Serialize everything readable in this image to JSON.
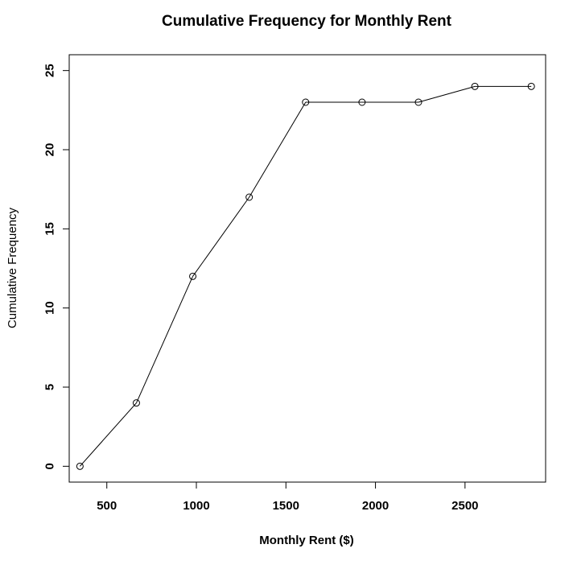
{
  "chart_data": {
    "type": "line",
    "title": "Cumulative Frequency for Monthly Rent",
    "xlabel": "Monthly Rent ($)",
    "ylabel": "Cumulative Frequency",
    "x_ticks": [
      500,
      1000,
      1500,
      2000,
      2500
    ],
    "y_ticks": [
      0,
      5,
      10,
      15,
      20,
      25
    ],
    "x_tick_labels": [
      "500",
      "1000",
      "1500",
      "2000",
      "2500"
    ],
    "y_tick_labels": [
      "0",
      "5",
      "10",
      "15",
      "20",
      "25"
    ],
    "xlim": [
      290,
      2950
    ],
    "ylim": [
      -1,
      26
    ],
    "grid": false,
    "legend": "none",
    "series": [
      {
        "x": [
          350,
          665,
          980,
          1295,
          1610,
          1925,
          2240,
          2555,
          2870
        ],
        "y": [
          0,
          4,
          12,
          17,
          23,
          23,
          23,
          24,
          24
        ],
        "marker": "open-circle",
        "color": "#000000"
      }
    ]
  }
}
